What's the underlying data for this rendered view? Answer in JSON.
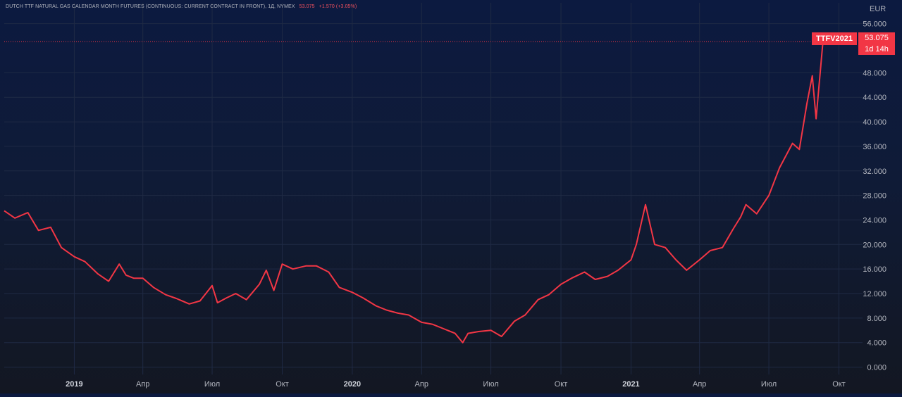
{
  "header": {
    "title": "DUTCH TTF NATURAL GAS CALENDAR MONTH FUTURES (CONTINUOUS: CURRENT CONTRACT IN FRONT), 1Д, NYMEX",
    "last_value": "53.075",
    "change": "+1.570 (+3.05%)"
  },
  "price_scale": {
    "unit": "EUR"
  },
  "last_price_tag": {
    "symbol": "TTFV2021",
    "price": "53.075",
    "countdown": "1d 14h"
  },
  "colors": {
    "line": "#f23645",
    "grid": "#1f2a44",
    "text": "#b2b5be"
  },
  "chart_data": {
    "type": "line",
    "series": [
      {
        "x": [
          "2018-10-01",
          "2018-10-15",
          "2018-11-01",
          "2018-11-15",
          "2018-12-01",
          "2018-12-15",
          "2019-01-01",
          "2019-01-15",
          "2019-02-01",
          "2019-02-15",
          "2019-03-01",
          "2019-03-10",
          "2019-03-20",
          "2019-04-01",
          "2019-04-15",
          "2019-05-01",
          "2019-05-15",
          "2019-06-01",
          "2019-06-15",
          "2019-07-01",
          "2019-07-08",
          "2019-07-20",
          "2019-08-01",
          "2019-08-15",
          "2019-09-01",
          "2019-09-10",
          "2019-09-20",
          "2019-10-01",
          "2019-10-15",
          "2019-11-01",
          "2019-11-15",
          "2019-12-01",
          "2019-12-15",
          "2020-01-01",
          "2020-01-15",
          "2020-02-01",
          "2020-02-15",
          "2020-03-01",
          "2020-03-15",
          "2020-04-01",
          "2020-04-15",
          "2020-05-01",
          "2020-05-15",
          "2020-05-25",
          "2020-06-01",
          "2020-06-15",
          "2020-07-01",
          "2020-07-15",
          "2020-08-01",
          "2020-08-15",
          "2020-09-01",
          "2020-09-15",
          "2020-10-01",
          "2020-10-15",
          "2020-11-01",
          "2020-11-15",
          "2020-12-01",
          "2020-12-15",
          "2021-01-01",
          "2021-01-08",
          "2021-01-20",
          "2021-02-01",
          "2021-02-15",
          "2021-03-01",
          "2021-03-15",
          "2021-04-01",
          "2021-04-15",
          "2021-05-01",
          "2021-05-15",
          "2021-05-25",
          "2021-06-01",
          "2021-06-15",
          "2021-07-01",
          "2021-07-15",
          "2021-08-01",
          "2021-08-10",
          "2021-08-20",
          "2021-08-27",
          "2021-09-01",
          "2021-09-10"
        ],
        "values": [
          25.5,
          24.3,
          25.2,
          22.3,
          22.8,
          19.5,
          18.0,
          17.2,
          15.2,
          14.0,
          16.8,
          15.0,
          14.5,
          14.5,
          13.0,
          11.8,
          11.2,
          10.3,
          10.8,
          13.3,
          10.5,
          11.3,
          12.0,
          11.0,
          13.5,
          15.8,
          12.5,
          16.8,
          16.0,
          16.5,
          16.5,
          15.5,
          13.0,
          12.2,
          11.3,
          10.0,
          9.3,
          8.8,
          8.5,
          7.3,
          7.0,
          6.2,
          5.5,
          4.0,
          5.5,
          5.8,
          6.0,
          5.0,
          7.5,
          8.5,
          11.0,
          11.8,
          13.5,
          14.5,
          15.5,
          14.3,
          14.8,
          15.8,
          17.5,
          20.0,
          26.5,
          20.0,
          19.5,
          17.5,
          15.8,
          17.5,
          19.0,
          19.5,
          22.5,
          24.5,
          26.5,
          25.0,
          28.0,
          32.5,
          36.5,
          35.5,
          43.0,
          47.5,
          40.5,
          53.075
        ]
      }
    ],
    "x_ticks": [
      "2019",
      "Апр",
      "Июл",
      "Окт",
      "2020",
      "Апр",
      "Июл",
      "Окт",
      "2021",
      "Апр",
      "Июл",
      "Окт"
    ],
    "x_tick_dates": [
      "2019-01-01",
      "2019-04-01",
      "2019-07-01",
      "2019-10-01",
      "2020-01-01",
      "2020-04-01",
      "2020-07-01",
      "2020-10-01",
      "2021-01-01",
      "2021-04-01",
      "2021-07-01",
      "2021-10-01"
    ],
    "y_ticks": [
      "0.000",
      "4.000",
      "8.000",
      "12.000",
      "16.000",
      "20.000",
      "24.000",
      "28.000",
      "32.000",
      "36.000",
      "40.000",
      "44.000",
      "48.000",
      "56.000"
    ],
    "ylim": [
      -1.2,
      57.8
    ],
    "xlim": [
      "2018-10-01",
      "2021-11-01"
    ],
    "grid": true
  }
}
